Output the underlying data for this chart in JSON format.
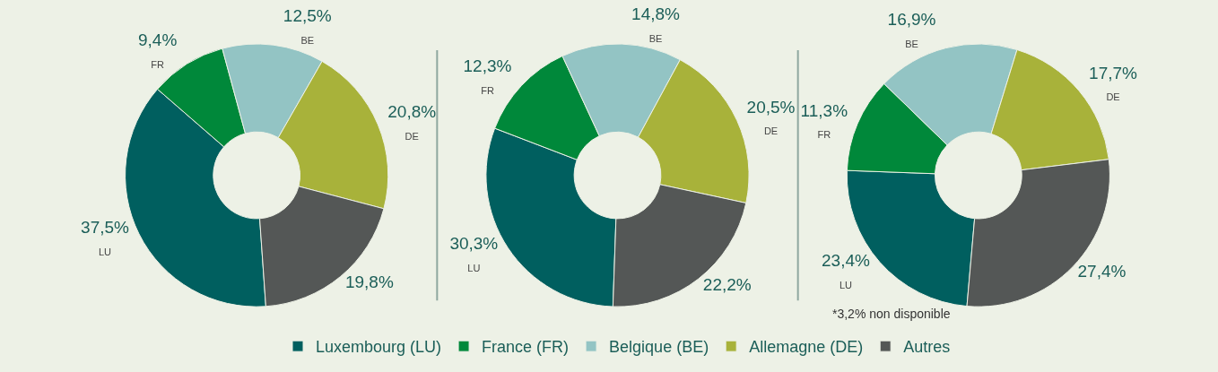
{
  "chart_data": [
    {
      "type": "donut",
      "categories": [
        "Luxembourg (LU)",
        "France (FR)",
        "Belgique (BE)",
        "Allemagne (DE)",
        "Autres"
      ],
      "values": [
        37.5,
        9.4,
        12.5,
        20.8,
        19.8
      ],
      "colors": [
        "#005f5f",
        "#00883a",
        "#93c4c4",
        "#a8b23a",
        "#545756"
      ],
      "value_labels": [
        "37,5%\nLU",
        "9,4%\nFR",
        "12,5%\nBE",
        "20,8%\nDE",
        "19,8%"
      ],
      "legend": "bottom"
    },
    {
      "type": "donut",
      "categories": [
        null,
        null,
        null,
        null,
        null
      ],
      "values": [
        30.3,
        12.3,
        14.8,
        20.5,
        22.2
      ],
      "colors": [
        "#005f5f",
        "#00883a",
        "#93c4c4",
        "#a8b23a",
        "#545756"
      ],
      "value_labels": [
        "30,3%\nLU",
        "12,3%\nFR",
        "14,8%\nBE",
        "20,5%\nDE",
        "22,2%"
      ]
    },
    {
      "type": "donut",
      "categories": [
        null,
        null,
        null,
        null,
        null
      ],
      "values": [
        23.4,
        11.3,
        16.9,
        17.7,
        27.4
      ],
      "colors": [
        "#005f5f",
        "#00883a",
        "#93c4c4",
        "#a8b23a",
        "#545756"
      ],
      "value_labels": [
        "23,4%\nLU",
        "11,3%\nFR",
        "16,9%\nBE",
        "17,7%\nDE",
        "27,4%"
      ],
      "annotations": [
        "*3,2% non disponible"
      ]
    }
  ]
}
